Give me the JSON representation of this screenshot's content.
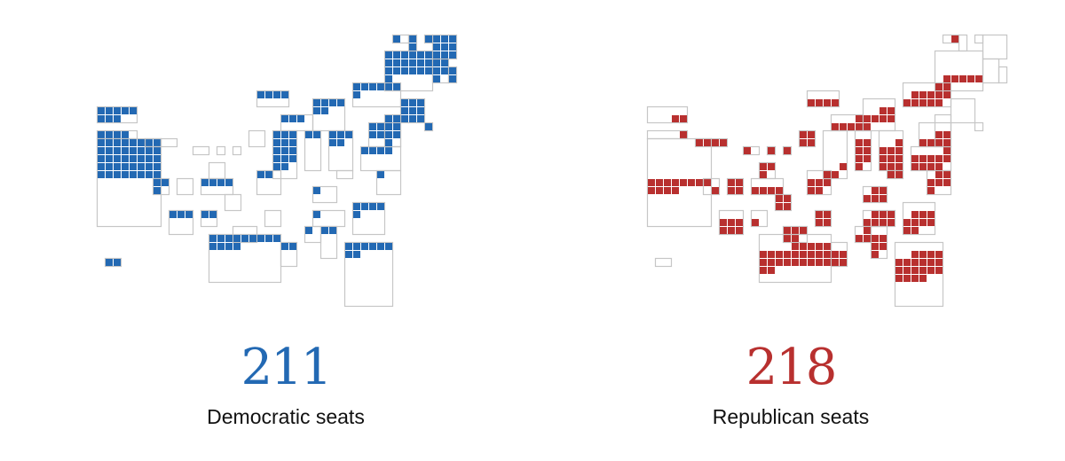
{
  "colors": {
    "democratic": "#2369b3",
    "republican": "#b8302f",
    "outline": "#c6c6c6",
    "text": "#111111"
  },
  "panels": {
    "democratic": {
      "total": "211",
      "label": "Democratic seats"
    },
    "republican": {
      "total": "218",
      "label": "Republican seats"
    }
  }
}
